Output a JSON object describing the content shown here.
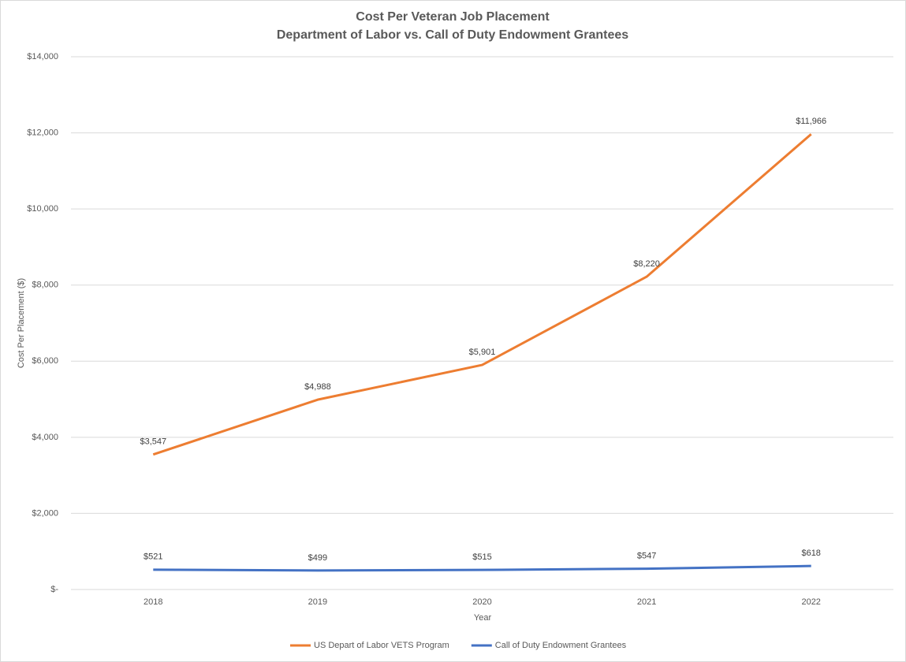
{
  "chart_data": {
    "type": "line",
    "title": "Cost Per Veteran Job Placement",
    "subtitle": "Department of Labor vs. Call of Duty Endowment Grantees",
    "x_label": "Year",
    "y_label": "Cost Per Placement ($)",
    "categories": [
      "2018",
      "2019",
      "2020",
      "2021",
      "2022"
    ],
    "series": [
      {
        "name": "US Depart of Labor VETS Program",
        "color": "#ed7d31",
        "values": [
          3547,
          4988,
          5901,
          8220,
          11966
        ],
        "value_labels": [
          "$3,547",
          "$4,988",
          "$5,901",
          "$8,220",
          "$11,966"
        ]
      },
      {
        "name": "Call of Duty Endowment Grantees",
        "color": "#4472c4",
        "values": [
          521,
          499,
          515,
          547,
          618
        ],
        "value_labels": [
          "$521",
          "$499",
          "$515",
          "$547",
          "$618"
        ]
      }
    ],
    "ylim": [
      0,
      14000
    ],
    "yticks": [
      {
        "value": 0,
        "label": "$-"
      },
      {
        "value": 2000,
        "label": "$2,000"
      },
      {
        "value": 4000,
        "label": "$4,000"
      },
      {
        "value": 6000,
        "label": "$6,000"
      },
      {
        "value": 8000,
        "label": "$8,000"
      },
      {
        "value": 10000,
        "label": "$10,000"
      },
      {
        "value": 12000,
        "label": "$12,000"
      },
      {
        "value": 14000,
        "label": "$14,000"
      }
    ],
    "grid": true,
    "legend": "bottom"
  }
}
